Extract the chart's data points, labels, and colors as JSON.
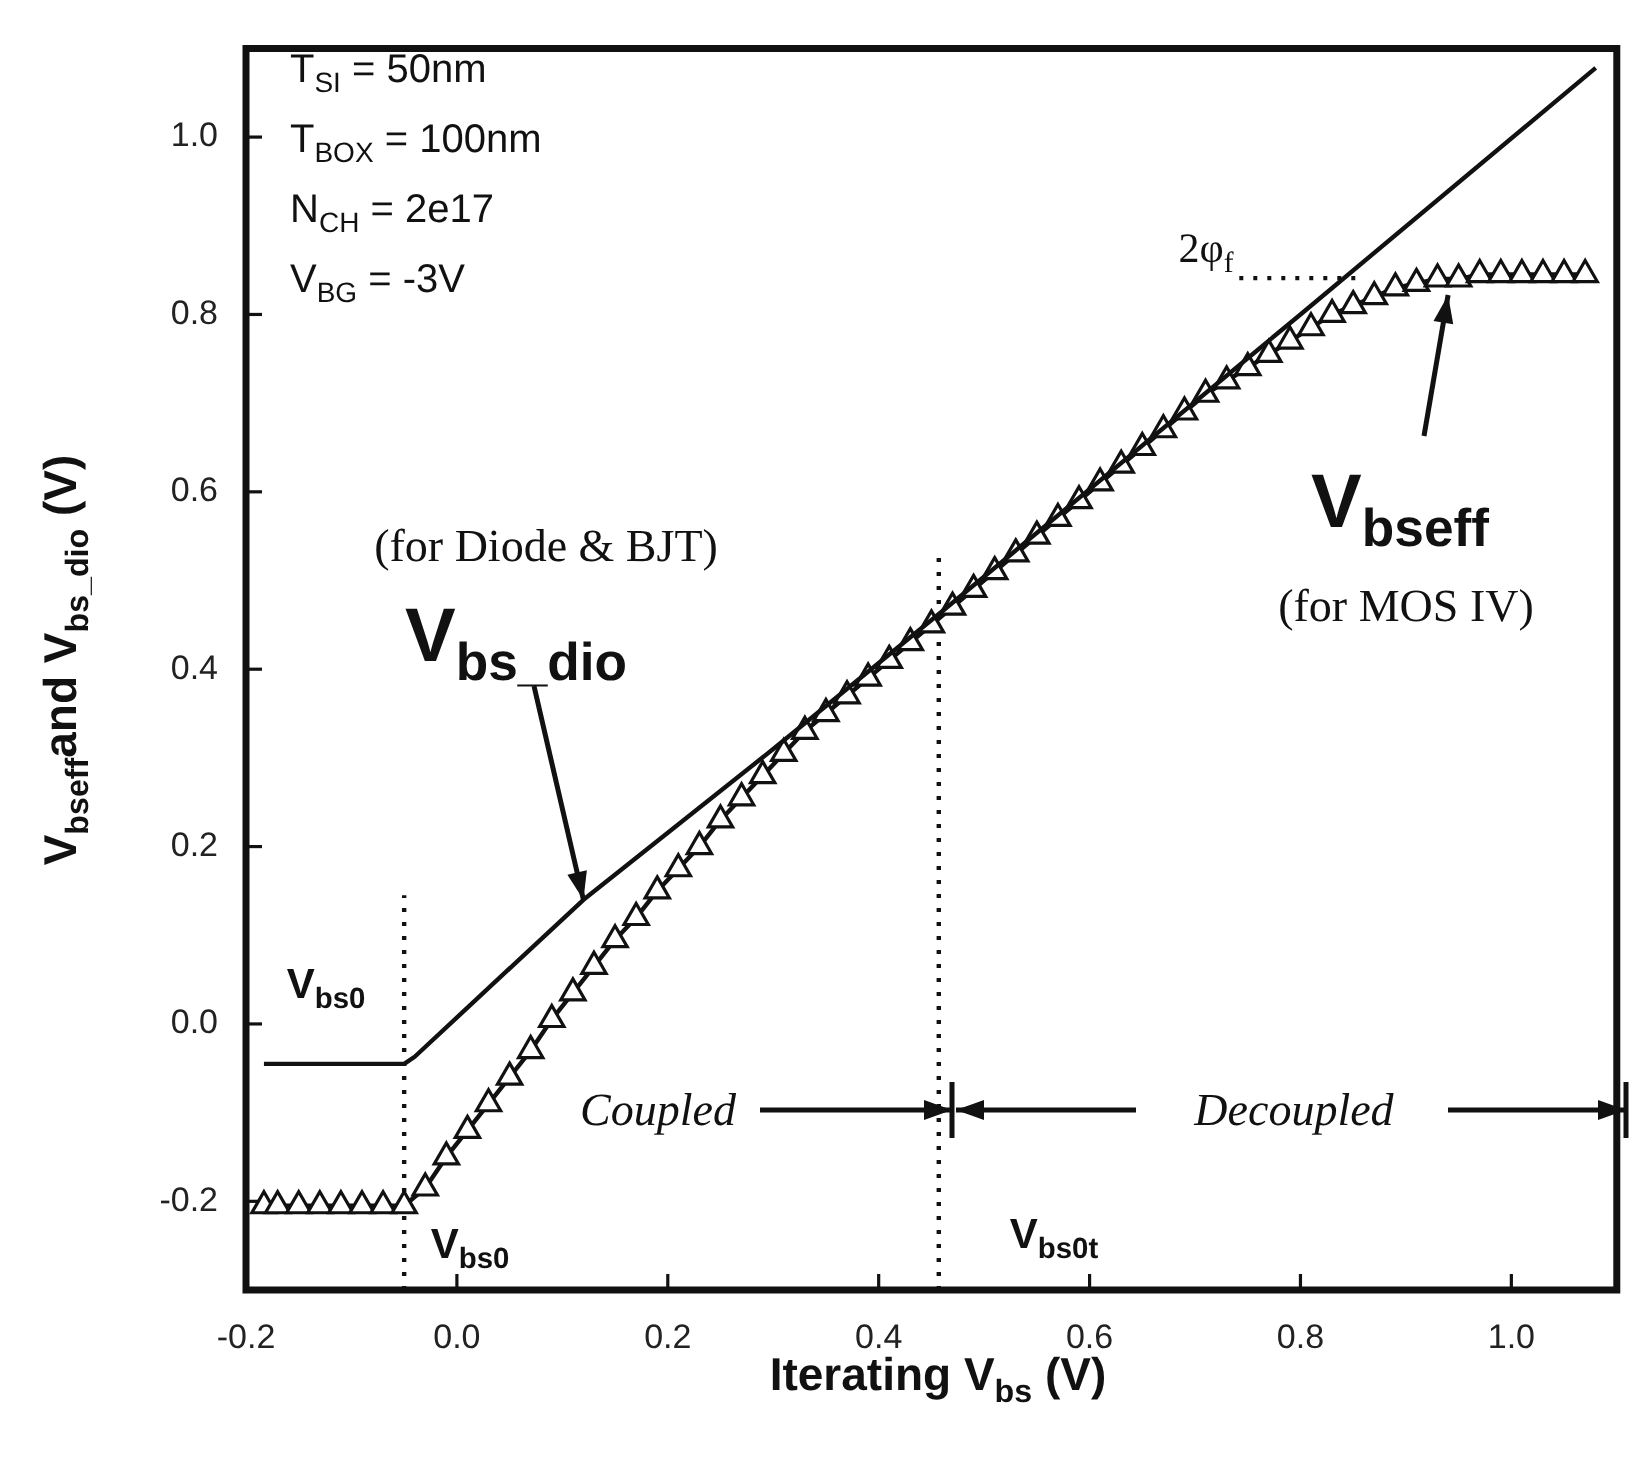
{
  "chart_data": {
    "type": "line",
    "xlabel": "Iterating V$_{bs}$ (V)",
    "ylabel": "V$_{bseff}$and V$_{bs_dio}$ (V)",
    "xlim": [
      -0.2,
      1.1
    ],
    "xticks": [
      -0.2,
      {
        "value": 0,
        "label": "0.0"
      },
      0.2,
      0.4,
      0.6,
      0.8,
      {
        "value": 1,
        "label": "1.0"
      }
    ],
    "ylim": [
      -0.3,
      1.1
    ],
    "yticks": [
      -0.2,
      {
        "value": 0,
        "label": "0.0"
      },
      0.2,
      0.4,
      0.6,
      0.8,
      {
        "value": 1,
        "label": "1.0"
      }
    ],
    "grid": false,
    "legend": false,
    "series": [
      {
        "color": "#111111",
        "marker": "none",
        "line_style": "solid",
        "x": [
          -0.183,
          -0.05,
          -0.04,
          0.12,
          0.3,
          0.46,
          0.8,
          1.08
        ],
        "values": [
          -0.045,
          -0.045,
          -0.037,
          0.14,
          0.31,
          0.465,
          0.8,
          1.078
        ]
      },
      {
        "color": "#111111",
        "marker": "triangle",
        "line_style": "solid",
        "x": [
          -0.183,
          -0.17,
          -0.15,
          -0.13,
          -0.11,
          -0.09,
          -0.07,
          -0.05,
          -0.03,
          -0.01,
          0.01,
          0.03,
          0.05,
          0.07,
          0.09,
          0.11,
          0.13,
          0.15,
          0.17,
          0.19,
          0.21,
          0.23,
          0.25,
          0.27,
          0.29,
          0.31,
          0.33,
          0.35,
          0.37,
          0.39,
          0.41,
          0.43,
          0.45,
          0.47,
          0.49,
          0.51,
          0.53,
          0.55,
          0.57,
          0.59,
          0.61,
          0.63,
          0.65,
          0.67,
          0.69,
          0.71,
          0.73,
          0.75,
          0.77,
          0.79,
          0.81,
          0.83,
          0.85,
          0.87,
          0.89,
          0.91,
          0.93,
          0.95,
          0.97,
          0.99,
          1.01,
          1.03,
          1.05,
          1.07
        ],
        "values": [
          -0.205,
          -0.205,
          -0.205,
          -0.205,
          -0.205,
          -0.205,
          -0.205,
          -0.205,
          -0.185,
          -0.15,
          -0.12,
          -0.09,
          -0.06,
          -0.03,
          0.005,
          0.035,
          0.065,
          0.095,
          0.12,
          0.15,
          0.175,
          0.2,
          0.23,
          0.255,
          0.28,
          0.305,
          0.33,
          0.35,
          0.37,
          0.39,
          0.41,
          0.43,
          0.45,
          0.47,
          0.49,
          0.51,
          0.53,
          0.55,
          0.57,
          0.59,
          0.61,
          0.63,
          0.65,
          0.67,
          0.69,
          0.71,
          0.725,
          0.74,
          0.755,
          0.77,
          0.785,
          0.8,
          0.81,
          0.82,
          0.83,
          0.835,
          0.84,
          0.84,
          0.845,
          0.845,
          0.845,
          0.845,
          0.845,
          0.845
        ]
      },
      {
        "color": "#111111",
        "marker": "none",
        "line_style": "dotted",
        "x": [
          -0.05,
          -0.05
        ],
        "values": [
          -0.3,
          0.145
        ]
      },
      {
        "color": "#111111",
        "marker": "none",
        "line_style": "dotted",
        "x": [
          0.457,
          0.457
        ],
        "values": [
          -0.3,
          0.535
        ]
      },
      {
        "color": "#111111",
        "marker": "none",
        "line_style": "dotted",
        "x": [
          0.742,
          0.86
        ],
        "values": [
          0.841,
          0.841
        ]
      }
    ],
    "annotations": [
      "T$_{SI}$ = 50nm",
      "T$_{BOX}$ = 100nm",
      "N$_{CH}$ = 2e17",
      "V$_{BG}$ = -3V",
      "V$_{bs0}$",
      "V$_{bs0}$",
      "V$_{bs0t}$",
      "2φ$_{f}$",
      "(for Diode & BJT)",
      {
        "text": "V$_{bs_dio}$",
        "x": 0.12,
        "y": 0.14
      },
      {
        "text": "V$_{bseff}$",
        "x": 0.94,
        "y": 0.84
      },
      "(for MOS IV)",
      "Coupled",
      "Decoupled"
    ]
  }
}
